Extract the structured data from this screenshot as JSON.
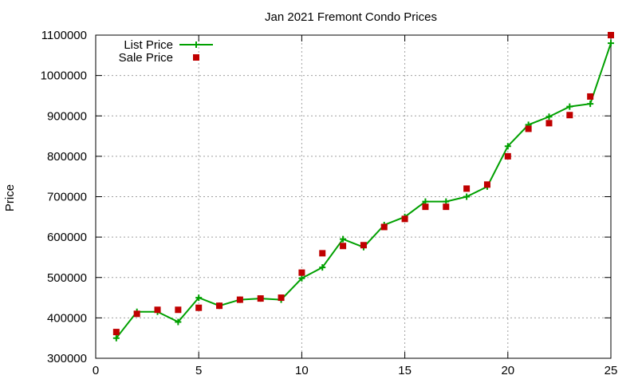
{
  "chart_data": {
    "type": "line",
    "title": "Jan 2021 Fremont Condo Prices",
    "xlabel": "",
    "ylabel": "Price",
    "xlim": [
      0,
      25
    ],
    "ylim": [
      300000,
      1100000
    ],
    "xticks": [
      0,
      5,
      10,
      15,
      20,
      25
    ],
    "yticks": [
      300000,
      400000,
      500000,
      600000,
      700000,
      800000,
      900000,
      1000000,
      1100000
    ],
    "grid": true,
    "legend_position": "top-left",
    "series": [
      {
        "name": "List Price",
        "style": "line-with-plus-markers",
        "color": "#00a000",
        "x": [
          1,
          2,
          3,
          4,
          5,
          6,
          7,
          8,
          9,
          10,
          11,
          12,
          13,
          14,
          15,
          16,
          17,
          18,
          19,
          20,
          21,
          22,
          23,
          24,
          25
        ],
        "values": [
          350000,
          415000,
          415000,
          390000,
          450000,
          430000,
          445000,
          448000,
          445000,
          498000,
          525000,
          595000,
          575000,
          630000,
          650000,
          688000,
          688000,
          700000,
          725000,
          825000,
          878000,
          898000,
          923000,
          930000,
          1080000
        ]
      },
      {
        "name": "Sale Price",
        "style": "square-markers",
        "color": "#c00000",
        "x": [
          1,
          2,
          3,
          4,
          5,
          6,
          7,
          8,
          9,
          10,
          11,
          12,
          13,
          14,
          15,
          16,
          17,
          18,
          19,
          20,
          21,
          22,
          23,
          24,
          25
        ],
        "values": [
          365000,
          410000,
          420000,
          420000,
          425000,
          430000,
          445000,
          448000,
          450000,
          512000,
          560000,
          578000,
          580000,
          625000,
          645000,
          675000,
          675000,
          720000,
          730000,
          800000,
          868000,
          882000,
          902000,
          948000,
          1100000
        ]
      }
    ]
  }
}
